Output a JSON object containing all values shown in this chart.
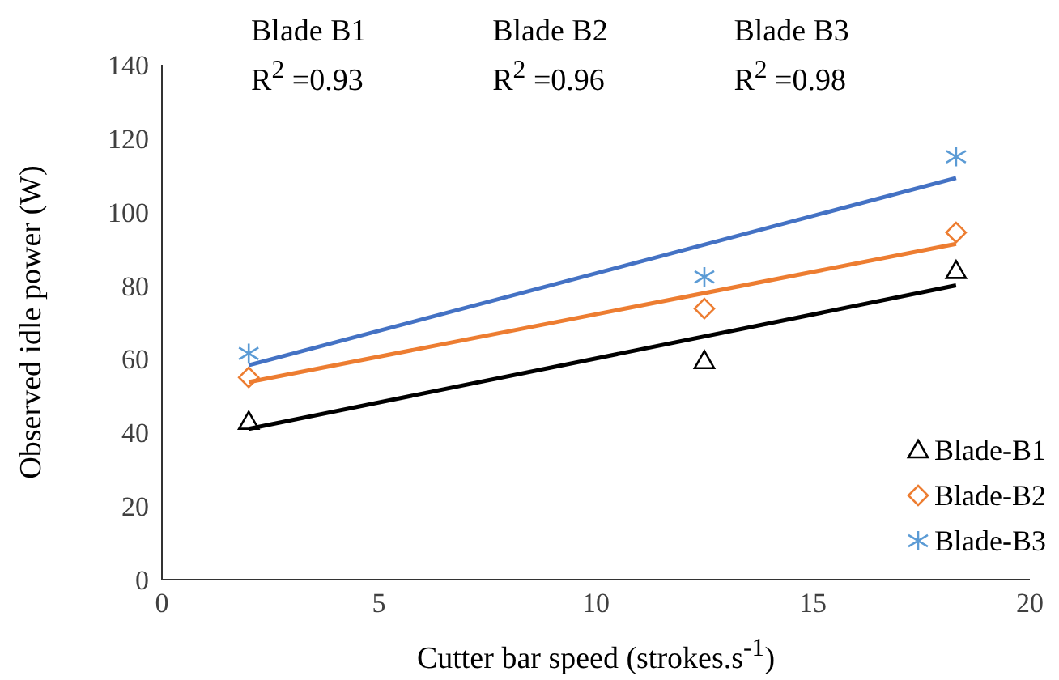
{
  "chart_data": {
    "type": "scatter",
    "xlabel": "Cutter bar speed (strokes.s$^{-1}$)",
    "ylabel": "Observed idle power (W)",
    "xlim": [
      0,
      20
    ],
    "xticks": [
      0,
      5,
      10,
      15,
      20
    ],
    "ylim": [
      0,
      140
    ],
    "yticks": [
      0,
      20,
      40,
      60,
      80,
      100,
      120,
      140
    ],
    "grid": false,
    "legend": "bottom right",
    "annotations": [
      "Blade B1\nR$^{2}$ =0.93",
      "Blade B2\nR$^{2}$ =0.96",
      "Blade B3\nR$^{2}$ =0.98"
    ],
    "series": [
      {
        "name": "Blade-B1",
        "color": "#000000",
        "marker": "triangle",
        "x": [
          2,
          12.5,
          18.3
        ],
        "values": [
          43,
          59.5,
          84
        ]
      },
      {
        "name": "Blade-B2",
        "color": "#ed7d31",
        "marker": "diamond",
        "x": [
          2,
          12.5,
          18.3
        ],
        "values": [
          55,
          73.7,
          94.4
        ]
      },
      {
        "name": "Blade-B3",
        "color": "#5b9bd5",
        "marker": "cross",
        "x": [
          2,
          12.5,
          18.3
        ],
        "values": [
          61.5,
          82.3,
          115
        ]
      },
      {
        "type": "line",
        "color": "#000000",
        "marker": "none",
        "x": [
          2,
          18.3
        ],
        "values": [
          41,
          80
        ]
      },
      {
        "type": "line",
        "color": "#ed7d31",
        "marker": "none",
        "x": [
          2,
          18.3
        ],
        "values": [
          53.7,
          91.3
        ]
      },
      {
        "type": "line",
        "color": "#4472c4",
        "marker": "none",
        "x": [
          2,
          18.3
        ],
        "values": [
          58.3,
          109.2
        ]
      }
    ]
  }
}
